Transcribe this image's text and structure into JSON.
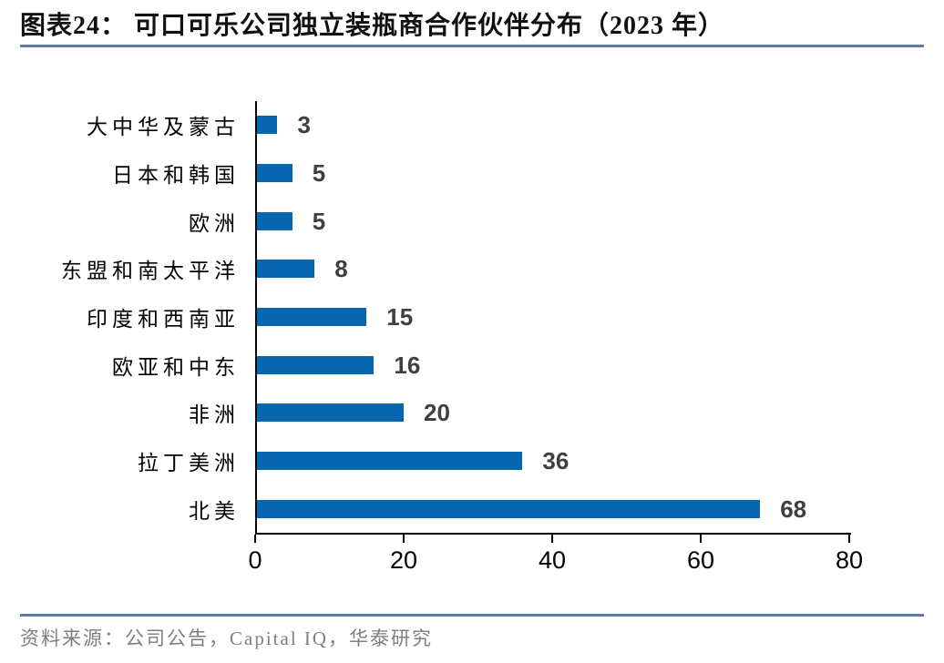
{
  "header": {
    "figure_label": "图表24：",
    "title": "可口可乐公司独立装瓶商合作伙伴分布（2023 年）",
    "rule_color": "#5B7CA6"
  },
  "footer": {
    "source": "资料来源：公司公告，Capital IQ，华泰研究",
    "rule_color": "#5B7CA6",
    "text_color": "#7F7F7F"
  },
  "chart_data": {
    "type": "bar",
    "orientation": "horizontal",
    "title": "可口可乐公司独立装瓶商合作伙伴分布（2023 年）",
    "categories": [
      "大中华及蒙古",
      "日本和韩国",
      "欧洲",
      "东盟和南太平洋",
      "印度和西南亚",
      "欧亚和中东",
      "非洲",
      "拉丁美洲",
      "北美"
    ],
    "values": [
      3,
      5,
      5,
      8,
      15,
      16,
      20,
      36,
      68
    ],
    "xlabel": "",
    "ylabel": "",
    "xlim": [
      0,
      80
    ],
    "x_ticks": [
      0,
      20,
      40,
      60,
      80
    ],
    "grid": false,
    "legend_position": "none",
    "value_labels_shown": true,
    "bar_color": "#0666B0",
    "value_label_color": "#3F3F3F",
    "axis_color": "#000000"
  }
}
